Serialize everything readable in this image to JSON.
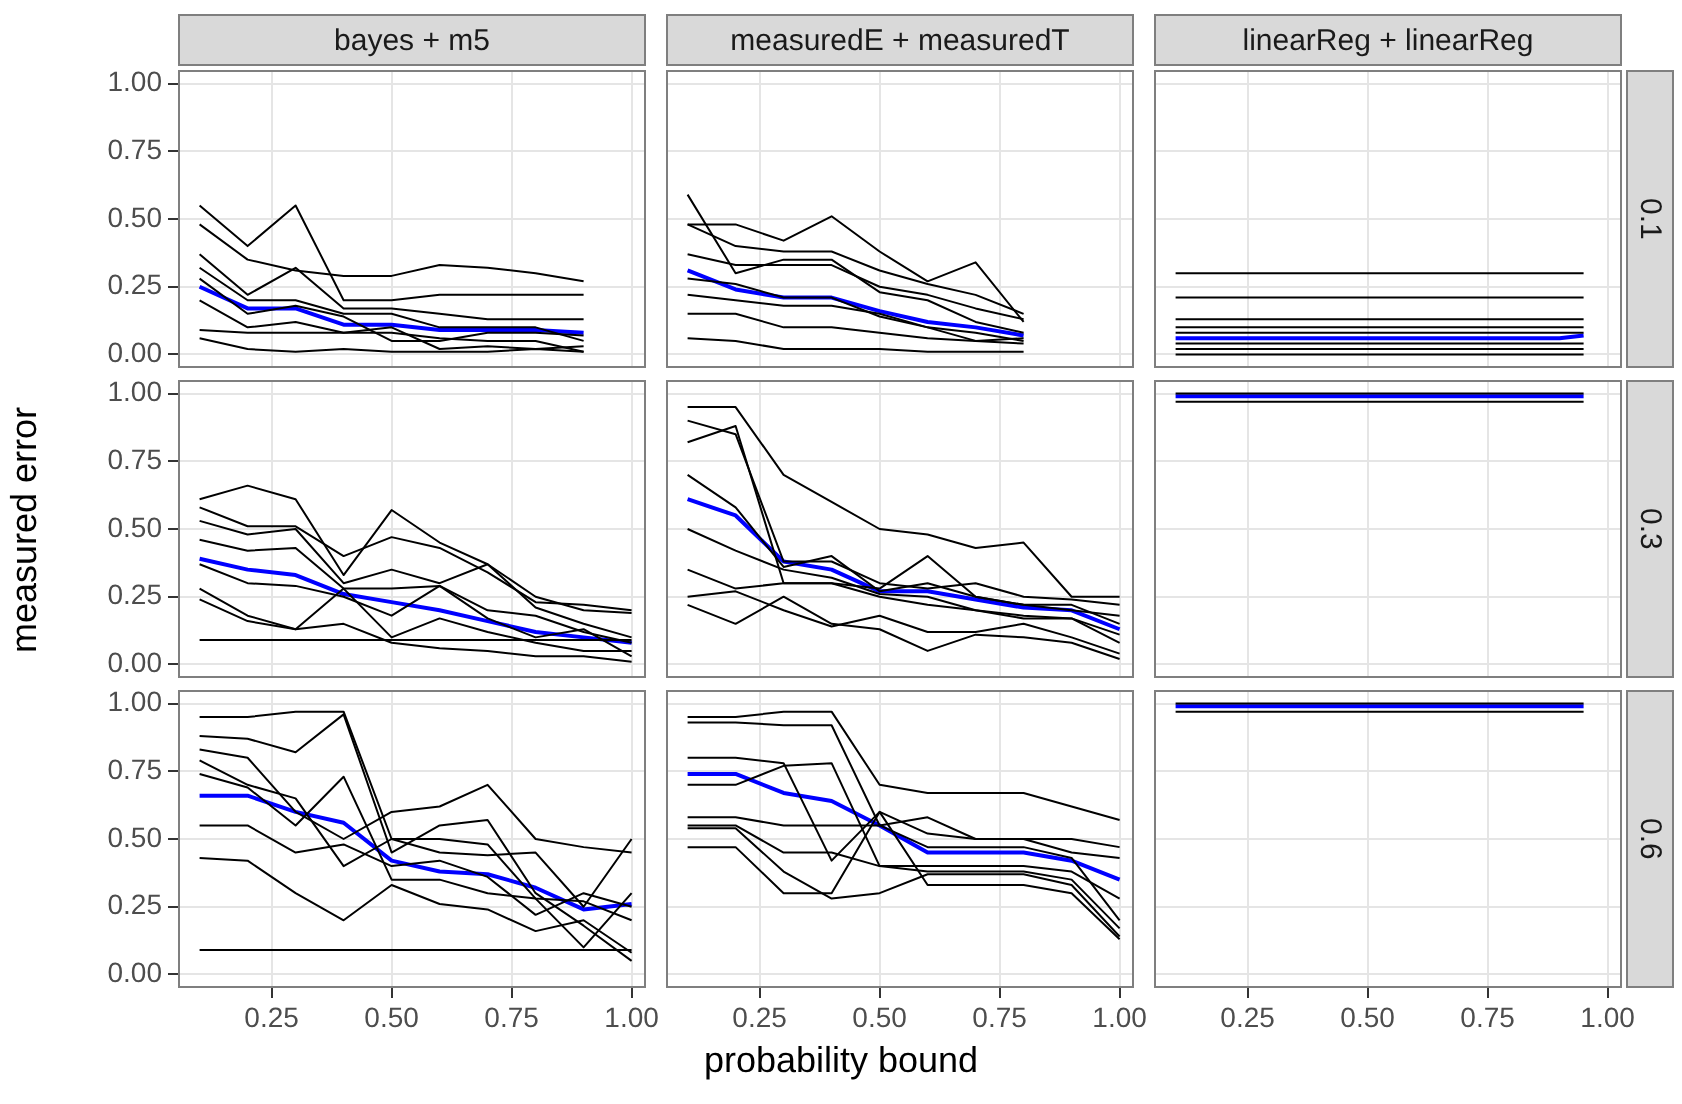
{
  "chart_data": [
    {
      "type": "line",
      "title": "bayes + m5",
      "grid": true,
      "marker": "none",
      "tick_labels": "y",
      "xlim": [
        0.055,
        1.03
      ],
      "ylim": [
        -0.05,
        1.05
      ],
      "xticks": [
        0.25,
        0.5,
        0.75,
        1
      ],
      "yticks": [
        {
          "value": 0,
          "label": "0.00"
        },
        {
          "value": 0.25,
          "label": "0.25"
        },
        {
          "value": 0.5,
          "label": "0.50"
        },
        {
          "value": 0.75,
          "label": "0.75"
        },
        {
          "value": 1,
          "label": "1.00"
        }
      ],
      "x": [
        0.1,
        0.2,
        0.3,
        0.4,
        0.5,
        0.6,
        0.7,
        0.8,
        0.9
      ],
      "series": [
        {
          "color": "#000000",
          "values": [
            0.55,
            0.4,
            0.55,
            0.2,
            0.2,
            0.22,
            0.22,
            0.22,
            0.22
          ]
        },
        {
          "color": "#000000",
          "values": [
            0.48,
            0.35,
            0.31,
            0.29,
            0.29,
            0.33,
            0.32,
            0.3,
            0.27
          ]
        },
        {
          "color": "#000000",
          "values": [
            0.37,
            0.22,
            0.32,
            0.17,
            0.17,
            0.15,
            0.13,
            0.13,
            0.13
          ]
        },
        {
          "color": "#000000",
          "values": [
            0.32,
            0.2,
            0.2,
            0.15,
            0.15,
            0.1,
            0.1,
            0.1,
            0.05
          ]
        },
        {
          "color": "#000000",
          "values": [
            0.2,
            0.1,
            0.12,
            0.08,
            0.1,
            0.02,
            0.03,
            0.02,
            0.03
          ]
        },
        {
          "color": "#000000",
          "values": [
            0.09,
            0.08,
            0.08,
            0.08,
            0.08,
            0.06,
            0.05,
            0.05,
            0.01
          ]
        },
        {
          "color": "#000000",
          "values": [
            0.06,
            0.02,
            0.01,
            0.02,
            0.01,
            0.01,
            0.01,
            0.02,
            0.01
          ]
        },
        {
          "color": "#000000",
          "values": [
            0.28,
            0.15,
            0.18,
            0.14,
            0.05,
            0.05,
            0.08,
            0.08,
            0.07
          ]
        },
        {
          "color": "#0000ff",
          "values": [
            0.25,
            0.17,
            0.17,
            0.11,
            0.11,
            0.09,
            0.09,
            0.09,
            0.08
          ]
        }
      ]
    },
    {
      "type": "line",
      "title": "measuredE + measuredT",
      "grid": true,
      "marker": "none",
      "tick_labels": false,
      "xlim": [
        0.055,
        1.03
      ],
      "ylim": [
        -0.05,
        1.05
      ],
      "xticks": [
        0.25,
        0.5,
        0.75,
        1
      ],
      "yticks": [
        0,
        0.25,
        0.5,
        0.75,
        1
      ],
      "x": [
        0.1,
        0.2,
        0.3,
        0.4,
        0.5,
        0.6,
        0.7,
        0.8
      ],
      "series": [
        {
          "color": "#000000",
          "values": [
            0.59,
            0.3,
            0.35,
            0.35,
            0.23,
            0.2,
            0.12,
            0.08
          ]
        },
        {
          "color": "#000000",
          "values": [
            0.48,
            0.48,
            0.42,
            0.51,
            0.38,
            0.27,
            0.34,
            0.12
          ]
        },
        {
          "color": "#000000",
          "values": [
            0.48,
            0.4,
            0.38,
            0.38,
            0.31,
            0.26,
            0.22,
            0.15
          ]
        },
        {
          "color": "#000000",
          "values": [
            0.37,
            0.33,
            0.33,
            0.33,
            0.25,
            0.22,
            0.17,
            0.13
          ]
        },
        {
          "color": "#000000",
          "values": [
            0.22,
            0.2,
            0.18,
            0.18,
            0.15,
            0.1,
            0.05,
            0.06
          ]
        },
        {
          "color": "#000000",
          "values": [
            0.15,
            0.15,
            0.1,
            0.1,
            0.08,
            0.06,
            0.05,
            0.04
          ]
        },
        {
          "color": "#000000",
          "values": [
            0.06,
            0.05,
            0.02,
            0.02,
            0.02,
            0.01,
            0.01,
            0.01
          ]
        },
        {
          "color": "#000000",
          "values": [
            0.28,
            0.26,
            0.21,
            0.21,
            0.14,
            0.1,
            0.08,
            0.05
          ]
        },
        {
          "color": "#0000ff",
          "values": [
            0.31,
            0.24,
            0.21,
            0.21,
            0.16,
            0.12,
            0.1,
            0.07
          ]
        }
      ]
    },
    {
      "type": "line",
      "title": "linearReg + linearReg",
      "y2label": "0.1",
      "grid": true,
      "marker": "none",
      "tick_labels": false,
      "xlim": [
        0.055,
        1.03
      ],
      "ylim": [
        -0.05,
        1.05
      ],
      "xticks": [
        0.25,
        0.5,
        0.75,
        1
      ],
      "yticks": [
        0,
        0.25,
        0.5,
        0.75,
        1
      ],
      "x": [
        0.1,
        0.9,
        0.95
      ],
      "series": [
        {
          "color": "#000000",
          "values": [
            0.3,
            0.3,
            0.3
          ]
        },
        {
          "color": "#000000",
          "values": [
            0.21,
            0.21,
            0.21
          ]
        },
        {
          "color": "#000000",
          "values": [
            0.13,
            0.13,
            0.13
          ]
        },
        {
          "color": "#000000",
          "values": [
            0.1,
            0.1,
            0.1
          ]
        },
        {
          "color": "#000000",
          "values": [
            0.08,
            0.08,
            0.08
          ]
        },
        {
          "color": "#000000",
          "values": [
            0.04,
            0.04,
            0.04
          ]
        },
        {
          "color": "#000000",
          "values": [
            0.02,
            0.02,
            0.02
          ]
        },
        {
          "color": "#000000",
          "values": [
            0,
            0,
            0
          ]
        },
        {
          "color": "#0000ff",
          "values": [
            0.06,
            0.06,
            0.07
          ]
        }
      ]
    },
    {
      "type": "line",
      "ylabel": "measured error",
      "grid": true,
      "marker": "none",
      "tick_labels": "y",
      "xlim": [
        0.055,
        1.03
      ],
      "ylim": [
        -0.05,
        1.05
      ],
      "xticks": [
        0.25,
        0.5,
        0.75,
        1
      ],
      "yticks": [
        {
          "value": 0,
          "label": "0.00"
        },
        {
          "value": 0.25,
          "label": "0.25"
        },
        {
          "value": 0.5,
          "label": "0.50"
        },
        {
          "value": 0.75,
          "label": "0.75"
        },
        {
          "value": 1,
          "label": "1.00"
        }
      ],
      "x": [
        0.1,
        0.2,
        0.3,
        0.4,
        0.5,
        0.6,
        0.7,
        0.8,
        0.9,
        1.0
      ],
      "series": [
        {
          "color": "#000000",
          "values": [
            0.61,
            0.66,
            0.61,
            0.33,
            0.57,
            0.45,
            0.37,
            0.25,
            0.2,
            0.19
          ]
        },
        {
          "color": "#000000",
          "values": [
            0.58,
            0.51,
            0.51,
            0.4,
            0.47,
            0.43,
            0.34,
            0.23,
            0.22,
            0.2
          ]
        },
        {
          "color": "#000000",
          "values": [
            0.53,
            0.48,
            0.5,
            0.3,
            0.35,
            0.3,
            0.37,
            0.21,
            0.15,
            0.1
          ]
        },
        {
          "color": "#000000",
          "values": [
            0.46,
            0.42,
            0.43,
            0.28,
            0.28,
            0.29,
            0.2,
            0.18,
            0.12,
            0.08
          ]
        },
        {
          "color": "#000000",
          "values": [
            0.37,
            0.3,
            0.29,
            0.25,
            0.18,
            0.29,
            0.17,
            0.1,
            0.13,
            0.03
          ]
        },
        {
          "color": "#000000",
          "values": [
            0.28,
            0.18,
            0.13,
            0.28,
            0.1,
            0.17,
            0.12,
            0.08,
            0.05,
            0.05
          ]
        },
        {
          "color": "#000000",
          "values": [
            0.24,
            0.16,
            0.13,
            0.15,
            0.08,
            0.06,
            0.05,
            0.03,
            0.03,
            0.01
          ]
        },
        {
          "color": "#000000",
          "values": [
            0.09,
            0.09,
            0.09,
            0.09,
            0.09,
            0.09,
            0.09,
            0.09,
            0.09,
            0.09
          ]
        },
        {
          "color": "#0000ff",
          "values": [
            0.39,
            0.35,
            0.33,
            0.26,
            0.23,
            0.2,
            0.16,
            0.12,
            0.1,
            0.08
          ]
        }
      ]
    },
    {
      "type": "line",
      "grid": true,
      "marker": "none",
      "tick_labels": false,
      "xlim": [
        0.055,
        1.03
      ],
      "ylim": [
        -0.05,
        1.05
      ],
      "xticks": [
        0.25,
        0.5,
        0.75,
        1
      ],
      "yticks": [
        0,
        0.25,
        0.5,
        0.75,
        1
      ],
      "x": [
        0.1,
        0.2,
        0.3,
        0.4,
        0.5,
        0.6,
        0.7,
        0.8,
        0.9,
        1.0
      ],
      "series": [
        {
          "color": "#000000",
          "values": [
            0.95,
            0.95,
            0.7,
            0.6,
            0.5,
            0.48,
            0.43,
            0.45,
            0.25,
            0.25
          ]
        },
        {
          "color": "#000000",
          "values": [
            0.9,
            0.85,
            0.38,
            0.38,
            0.3,
            0.28,
            0.3,
            0.25,
            0.24,
            0.22
          ]
        },
        {
          "color": "#000000",
          "values": [
            0.82,
            0.88,
            0.3,
            0.3,
            0.28,
            0.4,
            0.25,
            0.22,
            0.2,
            0.18
          ]
        },
        {
          "color": "#000000",
          "values": [
            0.7,
            0.58,
            0.36,
            0.4,
            0.27,
            0.3,
            0.25,
            0.22,
            0.22,
            0.15
          ]
        },
        {
          "color": "#000000",
          "values": [
            0.5,
            0.42,
            0.35,
            0.32,
            0.26,
            0.25,
            0.2,
            0.17,
            0.17,
            0.11
          ]
        },
        {
          "color": "#000000",
          "values": [
            0.35,
            0.28,
            0.3,
            0.3,
            0.25,
            0.22,
            0.2,
            0.18,
            0.17,
            0.08
          ]
        },
        {
          "color": "#000000",
          "values": [
            0.25,
            0.27,
            0.2,
            0.14,
            0.18,
            0.12,
            0.12,
            0.15,
            0.1,
            0.04
          ]
        },
        {
          "color": "#000000",
          "values": [
            0.22,
            0.15,
            0.25,
            0.15,
            0.13,
            0.05,
            0.11,
            0.1,
            0.08,
            0.02
          ]
        },
        {
          "color": "#0000ff",
          "values": [
            0.61,
            0.55,
            0.38,
            0.35,
            0.27,
            0.27,
            0.24,
            0.21,
            0.2,
            0.13
          ]
        }
      ]
    },
    {
      "type": "line",
      "y2label": "0.3",
      "grid": true,
      "marker": "none",
      "tick_labels": false,
      "xlim": [
        0.055,
        1.03
      ],
      "ylim": [
        -0.05,
        1.05
      ],
      "xticks": [
        0.25,
        0.5,
        0.75,
        1
      ],
      "yticks": [
        0,
        0.25,
        0.5,
        0.75,
        1
      ],
      "x": [
        0.1,
        0.9,
        0.95
      ],
      "series": [
        {
          "color": "#000000",
          "values": [
            1,
            1,
            1
          ]
        },
        {
          "color": "#000000",
          "values": [
            0.97,
            0.97,
            0.97
          ]
        },
        {
          "color": "#0000ff",
          "values": [
            0.99,
            0.99,
            0.99
          ]
        }
      ]
    },
    {
      "type": "line",
      "grid": true,
      "marker": "none",
      "xlim": [
        0.055,
        1.03
      ],
      "ylim": [
        -0.05,
        1.05
      ],
      "xticks": [
        {
          "value": 0.25,
          "label": "0.25"
        },
        {
          "value": 0.5,
          "label": "0.50"
        },
        {
          "value": 0.75,
          "label": "0.75"
        },
        {
          "value": 1,
          "label": "1.00"
        }
      ],
      "yticks": [
        {
          "value": 0,
          "label": "0.00"
        },
        {
          "value": 0.25,
          "label": "0.25"
        },
        {
          "value": 0.5,
          "label": "0.50"
        },
        {
          "value": 0.75,
          "label": "0.75"
        },
        {
          "value": 1,
          "label": "1.00"
        }
      ],
      "x": [
        0.1,
        0.2,
        0.3,
        0.4,
        0.5,
        0.6,
        0.7,
        0.8,
        0.9,
        1.0
      ],
      "series": [
        {
          "color": "#000000",
          "values": [
            0.95,
            0.95,
            0.97,
            0.97,
            0.5,
            0.45,
            0.44,
            0.45,
            0.25,
            0.5
          ]
        },
        {
          "color": "#000000",
          "values": [
            0.88,
            0.87,
            0.82,
            0.96,
            0.45,
            0.55,
            0.57,
            0.3,
            0.18,
            0.05
          ]
        },
        {
          "color": "#000000",
          "values": [
            0.83,
            0.8,
            0.6,
            0.5,
            0.6,
            0.62,
            0.7,
            0.5,
            0.47,
            0.45
          ]
        },
        {
          "color": "#000000",
          "values": [
            0.79,
            0.7,
            0.65,
            0.4,
            0.5,
            0.5,
            0.48,
            0.28,
            0.27,
            0.2
          ]
        },
        {
          "color": "#000000",
          "values": [
            0.74,
            0.69,
            0.55,
            0.73,
            0.35,
            0.35,
            0.3,
            0.28,
            0.1,
            0.3
          ]
        },
        {
          "color": "#000000",
          "values": [
            0.55,
            0.55,
            0.45,
            0.48,
            0.4,
            0.42,
            0.36,
            0.22,
            0.3,
            0.25
          ]
        },
        {
          "color": "#000000",
          "values": [
            0.43,
            0.42,
            0.3,
            0.2,
            0.33,
            0.26,
            0.24,
            0.16,
            0.2,
            0.08
          ]
        },
        {
          "color": "#000000",
          "values": [
            0.09,
            0.09,
            0.09,
            0.09,
            0.09,
            0.09,
            0.09,
            0.09,
            0.09,
            0.09
          ]
        },
        {
          "color": "#0000ff",
          "values": [
            0.66,
            0.66,
            0.6,
            0.56,
            0.42,
            0.38,
            0.37,
            0.32,
            0.24,
            0.26
          ]
        }
      ]
    },
    {
      "type": "line",
      "xlabel": "probability bound",
      "grid": true,
      "marker": "none",
      "tick_labels": "x",
      "xlim": [
        0.055,
        1.03
      ],
      "ylim": [
        -0.05,
        1.05
      ],
      "xticks": [
        {
          "value": 0.25,
          "label": "0.25"
        },
        {
          "value": 0.5,
          "label": "0.50"
        },
        {
          "value": 0.75,
          "label": "0.75"
        },
        {
          "value": 1,
          "label": "1.00"
        }
      ],
      "yticks": [
        0,
        0.25,
        0.5,
        0.75,
        1
      ],
      "x": [
        0.1,
        0.2,
        0.3,
        0.4,
        0.5,
        0.6,
        0.7,
        0.8,
        0.9,
        1.0
      ],
      "series": [
        {
          "color": "#000000",
          "values": [
            0.95,
            0.95,
            0.97,
            0.97,
            0.7,
            0.67,
            0.67,
            0.67,
            0.62,
            0.57
          ]
        },
        {
          "color": "#000000",
          "values": [
            0.93,
            0.93,
            0.92,
            0.92,
            0.55,
            0.58,
            0.5,
            0.5,
            0.5,
            0.47
          ]
        },
        {
          "color": "#000000",
          "values": [
            0.8,
            0.8,
            0.78,
            0.42,
            0.6,
            0.52,
            0.5,
            0.5,
            0.45,
            0.43
          ]
        },
        {
          "color": "#000000",
          "values": [
            0.7,
            0.7,
            0.77,
            0.78,
            0.4,
            0.4,
            0.4,
            0.4,
            0.38,
            0.28
          ]
        },
        {
          "color": "#000000",
          "values": [
            0.58,
            0.58,
            0.55,
            0.55,
            0.55,
            0.47,
            0.47,
            0.47,
            0.43,
            0.2
          ]
        },
        {
          "color": "#000000",
          "values": [
            0.55,
            0.55,
            0.45,
            0.45,
            0.4,
            0.38,
            0.38,
            0.38,
            0.35,
            0.17
          ]
        },
        {
          "color": "#000000",
          "values": [
            0.47,
            0.47,
            0.3,
            0.3,
            0.6,
            0.33,
            0.33,
            0.33,
            0.3,
            0.13
          ]
        },
        {
          "color": "#000000",
          "values": [
            0.54,
            0.54,
            0.38,
            0.28,
            0.3,
            0.37,
            0.37,
            0.37,
            0.33,
            0.14
          ]
        },
        {
          "color": "#0000ff",
          "values": [
            0.74,
            0.74,
            0.67,
            0.64,
            0.55,
            0.45,
            0.45,
            0.45,
            0.42,
            0.35
          ]
        }
      ]
    },
    {
      "type": "line",
      "y2label": "0.6",
      "grid": true,
      "marker": "none",
      "tick_labels": "x",
      "xlim": [
        0.055,
        1.03
      ],
      "ylim": [
        -0.05,
        1.05
      ],
      "xticks": [
        {
          "value": 0.25,
          "label": "0.25"
        },
        {
          "value": 0.5,
          "label": "0.50"
        },
        {
          "value": 0.75,
          "label": "0.75"
        },
        {
          "value": 1,
          "label": "1.00"
        }
      ],
      "yticks": [
        0,
        0.25,
        0.5,
        0.75,
        1
      ],
      "x": [
        0.1,
        0.9,
        0.95
      ],
      "series": [
        {
          "color": "#000000",
          "values": [
            1,
            1,
            1
          ]
        },
        {
          "color": "#000000",
          "values": [
            0.97,
            0.97,
            0.97
          ]
        },
        {
          "color": "#0000ff",
          "values": [
            0.99,
            0.99,
            0.99
          ]
        }
      ]
    }
  ]
}
